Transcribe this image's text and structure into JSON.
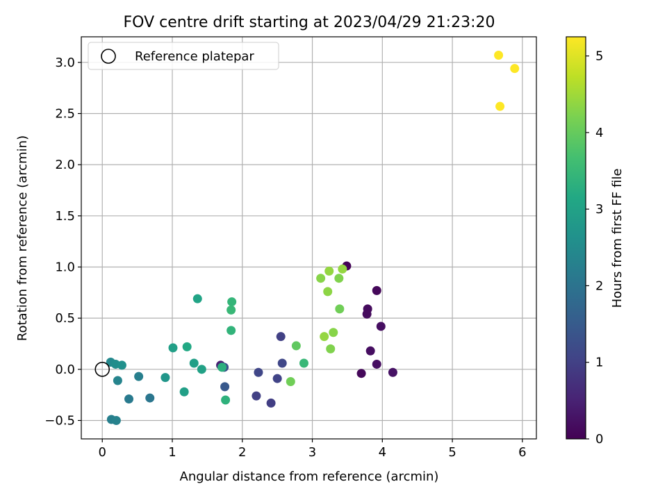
{
  "chart_data": {
    "type": "scatter",
    "title": "FOV centre drift starting at 2023/04/29 21:23:20",
    "xlabel": "Angular distance from reference (arcmin)",
    "ylabel": "Rotation from reference (arcmin)",
    "xlim": [
      -0.3,
      6.2
    ],
    "ylim": [
      -0.68,
      3.25
    ],
    "xticks": [
      "0",
      "1",
      "2",
      "3",
      "4",
      "5",
      "6"
    ],
    "xtick_values": [
      0,
      1,
      2,
      3,
      4,
      5,
      6
    ],
    "yticks": [
      "−0.5",
      "0.0",
      "0.5",
      "1.0",
      "1.5",
      "2.0",
      "2.5",
      "3.0"
    ],
    "ytick_values": [
      -0.5,
      0,
      0.5,
      1.0,
      1.5,
      2.0,
      2.5,
      3.0
    ],
    "grid": true,
    "legend": {
      "placement": "top-left",
      "entries": [
        "Reference platepar"
      ]
    },
    "reference_point": {
      "x": 0,
      "y": 0
    },
    "colorbar": {
      "label": "Hours from first FF file",
      "range": [
        0,
        5.25
      ],
      "ticks": [
        "0",
        "1",
        "2",
        "3",
        "4",
        "5"
      ],
      "tick_values": [
        0,
        1,
        2,
        3,
        4,
        5
      ],
      "colormap": "viridis"
    },
    "points": [
      {
        "x": 3.49,
        "y": 1.01,
        "h": 0.05
      },
      {
        "x": 3.7,
        "y": -0.04,
        "h": 0.1
      },
      {
        "x": 3.92,
        "y": 0.77,
        "h": 0.1
      },
      {
        "x": 3.79,
        "y": 0.59,
        "h": 0.15
      },
      {
        "x": 3.78,
        "y": 0.54,
        "h": 0.15
      },
      {
        "x": 3.98,
        "y": 0.42,
        "h": 0.2
      },
      {
        "x": 3.83,
        "y": 0.18,
        "h": 0.2
      },
      {
        "x": 3.92,
        "y": 0.05,
        "h": 0.2
      },
      {
        "x": 4.15,
        "y": -0.03,
        "h": 0.25
      },
      {
        "x": 1.69,
        "y": 0.04,
        "h": 0.5
      },
      {
        "x": 2.55,
        "y": 0.32,
        "h": 1.0
      },
      {
        "x": 2.57,
        "y": 0.06,
        "h": 1.1
      },
      {
        "x": 2.5,
        "y": -0.09,
        "h": 1.05
      },
      {
        "x": 2.23,
        "y": -0.03,
        "h": 1.1
      },
      {
        "x": 2.41,
        "y": -0.33,
        "h": 0.95
      },
      {
        "x": 2.2,
        "y": -0.26,
        "h": 1.0
      },
      {
        "x": 1.74,
        "y": 0.02,
        "h": 1.3
      },
      {
        "x": 1.75,
        "y": -0.17,
        "h": 1.45
      },
      {
        "x": 0.68,
        "y": -0.28,
        "h": 2.05
      },
      {
        "x": 0.38,
        "y": -0.29,
        "h": 2.15
      },
      {
        "x": 0.52,
        "y": -0.07,
        "h": 2.25
      },
      {
        "x": 0.13,
        "y": -0.49,
        "h": 2.25
      },
      {
        "x": 0.2,
        "y": -0.5,
        "h": 2.3
      },
      {
        "x": 0.22,
        "y": -0.11,
        "h": 2.35
      },
      {
        "x": 0.12,
        "y": 0.07,
        "h": 2.45
      },
      {
        "x": 0.19,
        "y": 0.05,
        "h": 2.55
      },
      {
        "x": 0.28,
        "y": 0.04,
        "h": 2.6
      },
      {
        "x": 0.9,
        "y": -0.08,
        "h": 2.75
      },
      {
        "x": 1.17,
        "y": -0.22,
        "h": 2.95
      },
      {
        "x": 1.01,
        "y": 0.21,
        "h": 2.95
      },
      {
        "x": 1.31,
        "y": 0.06,
        "h": 2.95
      },
      {
        "x": 1.42,
        "y": 0.0,
        "h": 3.0
      },
      {
        "x": 1.36,
        "y": 0.69,
        "h": 3.05
      },
      {
        "x": 1.21,
        "y": 0.22,
        "h": 3.15
      },
      {
        "x": 1.71,
        "y": 0.02,
        "h": 3.3
      },
      {
        "x": 1.76,
        "y": -0.3,
        "h": 3.35
      },
      {
        "x": 1.84,
        "y": 0.38,
        "h": 3.4
      },
      {
        "x": 1.85,
        "y": 0.66,
        "h": 3.45
      },
      {
        "x": 1.84,
        "y": 0.58,
        "h": 3.5
      },
      {
        "x": 2.88,
        "y": 0.06,
        "h": 3.5
      },
      {
        "x": 2.77,
        "y": 0.23,
        "h": 3.95
      },
      {
        "x": 2.69,
        "y": -0.12,
        "h": 4.1
      },
      {
        "x": 3.39,
        "y": 0.59,
        "h": 4.1
      },
      {
        "x": 3.38,
        "y": 0.89,
        "h": 4.25
      },
      {
        "x": 3.26,
        "y": 0.2,
        "h": 4.25
      },
      {
        "x": 3.3,
        "y": 0.36,
        "h": 4.3
      },
      {
        "x": 3.17,
        "y": 0.32,
        "h": 4.4
      },
      {
        "x": 3.12,
        "y": 0.89,
        "h": 4.3
      },
      {
        "x": 3.22,
        "y": 0.76,
        "h": 4.35
      },
      {
        "x": 3.24,
        "y": 0.96,
        "h": 4.4
      },
      {
        "x": 3.43,
        "y": 0.98,
        "h": 4.4
      },
      {
        "x": 5.66,
        "y": 3.07,
        "h": 5.25
      },
      {
        "x": 5.89,
        "y": 2.94,
        "h": 5.25
      },
      {
        "x": 5.68,
        "y": 2.57,
        "h": 5.25
      }
    ]
  }
}
